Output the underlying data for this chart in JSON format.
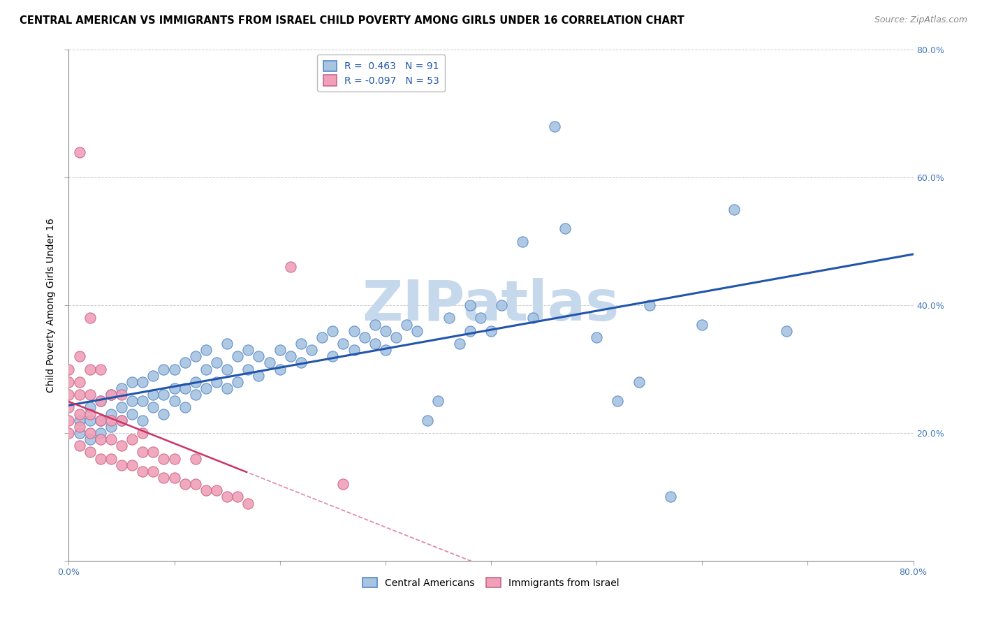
{
  "title": "CENTRAL AMERICAN VS IMMIGRANTS FROM ISRAEL CHILD POVERTY AMONG GIRLS UNDER 16 CORRELATION CHART",
  "source": "Source: ZipAtlas.com",
  "ylabel": "Child Poverty Among Girls Under 16",
  "xlim": [
    0.0,
    0.8
  ],
  "ylim": [
    0.0,
    0.8
  ],
  "ytick_positions": [
    0.0,
    0.2,
    0.4,
    0.6,
    0.8
  ],
  "right_ytick_labels": [
    "",
    "20.0%",
    "40.0%",
    "60.0%",
    "80.0%"
  ],
  "xtick_positions": [
    0.0,
    0.1,
    0.2,
    0.3,
    0.4,
    0.5,
    0.6,
    0.7,
    0.8
  ],
  "xtick_labels": [
    "0.0%",
    "",
    "",
    "",
    "",
    "",
    "",
    "",
    "80.0%"
  ],
  "blue_color": "#a8c4e0",
  "blue_edge_color": "#5588cc",
  "pink_color": "#f0a0b8",
  "pink_edge_color": "#cc6688",
  "blue_line_color": "#2255aa",
  "pink_line_color": "#cc3366",
  "blue_scatter": [
    [
      0.01,
      0.2
    ],
    [
      0.01,
      0.22
    ],
    [
      0.02,
      0.19
    ],
    [
      0.02,
      0.22
    ],
    [
      0.02,
      0.24
    ],
    [
      0.03,
      0.2
    ],
    [
      0.03,
      0.22
    ],
    [
      0.03,
      0.25
    ],
    [
      0.04,
      0.21
    ],
    [
      0.04,
      0.23
    ],
    [
      0.04,
      0.26
    ],
    [
      0.05,
      0.22
    ],
    [
      0.05,
      0.24
    ],
    [
      0.05,
      0.27
    ],
    [
      0.06,
      0.23
    ],
    [
      0.06,
      0.25
    ],
    [
      0.06,
      0.28
    ],
    [
      0.07,
      0.22
    ],
    [
      0.07,
      0.25
    ],
    [
      0.07,
      0.28
    ],
    [
      0.08,
      0.24
    ],
    [
      0.08,
      0.26
    ],
    [
      0.08,
      0.29
    ],
    [
      0.09,
      0.23
    ],
    [
      0.09,
      0.26
    ],
    [
      0.09,
      0.3
    ],
    [
      0.1,
      0.25
    ],
    [
      0.1,
      0.27
    ],
    [
      0.1,
      0.3
    ],
    [
      0.11,
      0.24
    ],
    [
      0.11,
      0.27
    ],
    [
      0.11,
      0.31
    ],
    [
      0.12,
      0.26
    ],
    [
      0.12,
      0.28
    ],
    [
      0.12,
      0.32
    ],
    [
      0.13,
      0.27
    ],
    [
      0.13,
      0.3
    ],
    [
      0.13,
      0.33
    ],
    [
      0.14,
      0.28
    ],
    [
      0.14,
      0.31
    ],
    [
      0.15,
      0.27
    ],
    [
      0.15,
      0.3
    ],
    [
      0.15,
      0.34
    ],
    [
      0.16,
      0.28
    ],
    [
      0.16,
      0.32
    ],
    [
      0.17,
      0.3
    ],
    [
      0.17,
      0.33
    ],
    [
      0.18,
      0.29
    ],
    [
      0.18,
      0.32
    ],
    [
      0.19,
      0.31
    ],
    [
      0.2,
      0.3
    ],
    [
      0.2,
      0.33
    ],
    [
      0.21,
      0.32
    ],
    [
      0.22,
      0.31
    ],
    [
      0.22,
      0.34
    ],
    [
      0.23,
      0.33
    ],
    [
      0.24,
      0.35
    ],
    [
      0.25,
      0.32
    ],
    [
      0.25,
      0.36
    ],
    [
      0.26,
      0.34
    ],
    [
      0.27,
      0.33
    ],
    [
      0.27,
      0.36
    ],
    [
      0.28,
      0.35
    ],
    [
      0.29,
      0.34
    ],
    [
      0.29,
      0.37
    ],
    [
      0.3,
      0.33
    ],
    [
      0.3,
      0.36
    ],
    [
      0.31,
      0.35
    ],
    [
      0.32,
      0.37
    ],
    [
      0.33,
      0.36
    ],
    [
      0.34,
      0.22
    ],
    [
      0.35,
      0.25
    ],
    [
      0.36,
      0.38
    ],
    [
      0.37,
      0.34
    ],
    [
      0.38,
      0.36
    ],
    [
      0.38,
      0.4
    ],
    [
      0.39,
      0.38
    ],
    [
      0.4,
      0.36
    ],
    [
      0.41,
      0.4
    ],
    [
      0.43,
      0.5
    ],
    [
      0.44,
      0.38
    ],
    [
      0.46,
      0.68
    ],
    [
      0.47,
      0.52
    ],
    [
      0.5,
      0.35
    ],
    [
      0.52,
      0.25
    ],
    [
      0.54,
      0.28
    ],
    [
      0.55,
      0.4
    ],
    [
      0.57,
      0.1
    ],
    [
      0.6,
      0.37
    ],
    [
      0.63,
      0.55
    ],
    [
      0.68,
      0.36
    ]
  ],
  "pink_scatter": [
    [
      0.0,
      0.2
    ],
    [
      0.0,
      0.22
    ],
    [
      0.0,
      0.24
    ],
    [
      0.0,
      0.26
    ],
    [
      0.0,
      0.28
    ],
    [
      0.0,
      0.3
    ],
    [
      0.01,
      0.18
    ],
    [
      0.01,
      0.21
    ],
    [
      0.01,
      0.23
    ],
    [
      0.01,
      0.26
    ],
    [
      0.01,
      0.28
    ],
    [
      0.01,
      0.32
    ],
    [
      0.01,
      0.64
    ],
    [
      0.02,
      0.17
    ],
    [
      0.02,
      0.2
    ],
    [
      0.02,
      0.23
    ],
    [
      0.02,
      0.26
    ],
    [
      0.02,
      0.3
    ],
    [
      0.02,
      0.38
    ],
    [
      0.03,
      0.16
    ],
    [
      0.03,
      0.19
    ],
    [
      0.03,
      0.22
    ],
    [
      0.03,
      0.25
    ],
    [
      0.03,
      0.3
    ],
    [
      0.04,
      0.16
    ],
    [
      0.04,
      0.19
    ],
    [
      0.04,
      0.22
    ],
    [
      0.04,
      0.26
    ],
    [
      0.05,
      0.15
    ],
    [
      0.05,
      0.18
    ],
    [
      0.05,
      0.22
    ],
    [
      0.05,
      0.26
    ],
    [
      0.06,
      0.15
    ],
    [
      0.06,
      0.19
    ],
    [
      0.07,
      0.14
    ],
    [
      0.07,
      0.17
    ],
    [
      0.07,
      0.2
    ],
    [
      0.08,
      0.14
    ],
    [
      0.08,
      0.17
    ],
    [
      0.09,
      0.13
    ],
    [
      0.09,
      0.16
    ],
    [
      0.1,
      0.13
    ],
    [
      0.1,
      0.16
    ],
    [
      0.11,
      0.12
    ],
    [
      0.12,
      0.12
    ],
    [
      0.12,
      0.16
    ],
    [
      0.13,
      0.11
    ],
    [
      0.14,
      0.11
    ],
    [
      0.15,
      0.1
    ],
    [
      0.16,
      0.1
    ],
    [
      0.17,
      0.09
    ],
    [
      0.21,
      0.46
    ],
    [
      0.26,
      0.12
    ]
  ],
  "watermark": "ZIPatlas",
  "watermark_color": "#c5d8ec",
  "legend_label_blue": "R =  0.463   N = 91",
  "legend_label_pink": "R = -0.097   N = 53",
  "bottom_legend_blue": "Central Americans",
  "bottom_legend_pink": "Immigrants from Israel",
  "title_fontsize": 10.5,
  "source_fontsize": 9,
  "ylabel_fontsize": 10,
  "tick_fontsize": 9,
  "legend_fontsize": 10,
  "dot_size": 120
}
